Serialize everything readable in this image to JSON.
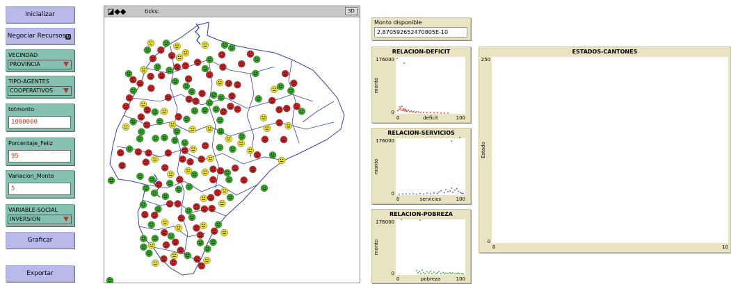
{
  "buttons": {
    "inicializar": "Inicializar",
    "negociar": "Negociar Recursos",
    "graficar": "Graficar",
    "exportar": "Exportar"
  },
  "choosers": {
    "vecindad": {
      "label": "VECINDAD",
      "value": "PROVINCIA"
    },
    "tipo_agentes": {
      "label": "TIPO-AGENTES",
      "value": "COOPERATIVOS"
    },
    "variable_social": {
      "label": "VARIABLE-SOCIAL",
      "value": "INVERSION"
    }
  },
  "inputs": {
    "totmonto": {
      "label": "totmonto",
      "value": "1000000"
    },
    "porcentaje_feliz": {
      "label": "Porcentaje_Feliz",
      "value": "95"
    },
    "variacion_monto": {
      "label": "Variacion_Monto",
      "value": "5"
    }
  },
  "view": {
    "ticks_label": "ticks:",
    "btn_3d": "3D",
    "agent_colors": {
      "happy": "#33aa22",
      "sad": "#cc2222",
      "neutral": "#e8e020"
    }
  },
  "monitor": {
    "label": "Monto disponible",
    "value": "2.870592652470805E-10"
  },
  "plots": {
    "deficit": {
      "title": "RELACION-DEFICIT",
      "ylabel": "monto",
      "xlabel": "deficit",
      "ymax": "176000",
      "ymin": "0",
      "xmin": "0",
      "xmax": "100",
      "color": "#d03030"
    },
    "servicios": {
      "title": "RELACION-SERVICIOS",
      "ylabel": "monto",
      "xlabel": "servicios",
      "ymax": "176000",
      "ymin": "0",
      "xmin": "0",
      "xmax": "100",
      "color": "#2060c0"
    },
    "pobreza": {
      "title": "RELACION-POBREZA",
      "ylabel": "monto",
      "xlabel": "pobreza",
      "ymax": "176000",
      "ymin": "0",
      "xmin": "0",
      "xmax": "100",
      "color": "#30a030"
    },
    "estados": {
      "title": "ESTADOS-CANTONES",
      "ylabel": "Estado",
      "ymax": "250",
      "ymin": "0",
      "xmin": "0",
      "xmax": "10"
    }
  },
  "chart_data": [
    {
      "type": "scatter",
      "title": "RELACION-DEFICIT",
      "xlabel": "deficit",
      "ylabel": "monto",
      "xlim": [
        0,
        100
      ],
      "ylim": [
        0,
        176000
      ],
      "points": [
        [
          2,
          170000
        ],
        [
          12,
          155000
        ],
        [
          3,
          8000
        ],
        [
          5,
          12000
        ],
        [
          6,
          20000
        ],
        [
          7,
          15000
        ],
        [
          8,
          10000
        ],
        [
          9,
          22000
        ],
        [
          10,
          9000
        ],
        [
          11,
          14000
        ],
        [
          12,
          11000
        ],
        [
          13,
          7000
        ],
        [
          14,
          12000
        ],
        [
          15,
          8000
        ],
        [
          16,
          6000
        ],
        [
          18,
          9000
        ],
        [
          20,
          5000
        ],
        [
          22,
          7000
        ],
        [
          24,
          4000
        ],
        [
          26,
          6000
        ],
        [
          28,
          3000
        ],
        [
          30,
          5000
        ],
        [
          33,
          4000
        ],
        [
          36,
          3000
        ],
        [
          40,
          2500
        ],
        [
          45,
          2000
        ],
        [
          50,
          2200
        ],
        [
          55,
          1500
        ],
        [
          60,
          1800
        ],
        [
          65,
          1200
        ],
        [
          70,
          1000
        ],
        [
          75,
          900
        ]
      ]
    },
    {
      "type": "scatter",
      "title": "RELACION-SERVICIOS",
      "xlabel": "servicios",
      "ylabel": "monto",
      "xlim": [
        0,
        100
      ],
      "ylim": [
        0,
        176000
      ],
      "points": [
        [
          92,
          176000
        ],
        [
          80,
          165000
        ],
        [
          5,
          1000
        ],
        [
          10,
          1500
        ],
        [
          15,
          2000
        ],
        [
          20,
          1800
        ],
        [
          25,
          2500
        ],
        [
          30,
          1200
        ],
        [
          35,
          3000
        ],
        [
          40,
          2000
        ],
        [
          45,
          4000
        ],
        [
          50,
          2500
        ],
        [
          55,
          5000
        ],
        [
          60,
          3500
        ],
        [
          62,
          8000
        ],
        [
          65,
          12000
        ],
        [
          70,
          6000
        ],
        [
          72,
          15000
        ],
        [
          75,
          9000
        ],
        [
          78,
          11000
        ],
        [
          80,
          20000
        ],
        [
          82,
          7000
        ],
        [
          85,
          14000
        ],
        [
          88,
          18000
        ],
        [
          90,
          10000
        ],
        [
          93,
          6000
        ],
        [
          95,
          4000
        ],
        [
          97,
          3000
        ]
      ]
    },
    {
      "type": "scatter",
      "title": "RELACION-POBREZA",
      "xlabel": "pobreza",
      "ylabel": "monto",
      "xlim": [
        0,
        100
      ],
      "ylim": [
        0,
        176000
      ],
      "points": [
        [
          8,
          174000
        ],
        [
          35,
          172000
        ],
        [
          30,
          12000
        ],
        [
          32,
          5000
        ],
        [
          34,
          9000
        ],
        [
          36,
          3000
        ],
        [
          38,
          14000
        ],
        [
          40,
          6000
        ],
        [
          42,
          2000
        ],
        [
          45,
          8000
        ],
        [
          48,
          4000
        ],
        [
          50,
          10000
        ],
        [
          52,
          3000
        ],
        [
          55,
          7000
        ],
        [
          58,
          2500
        ],
        [
          60,
          5000
        ],
        [
          62,
          9000
        ],
        [
          65,
          3000
        ],
        [
          68,
          6000
        ],
        [
          70,
          2000
        ],
        [
          72,
          4000
        ],
        [
          75,
          3500
        ],
        [
          78,
          5000
        ],
        [
          80,
          2000
        ],
        [
          82,
          4500
        ],
        [
          85,
          3000
        ],
        [
          88,
          2500
        ],
        [
          90,
          4000
        ],
        [
          92,
          2000
        ],
        [
          95,
          3000
        ],
        [
          97,
          1500
        ]
      ]
    },
    {
      "type": "line",
      "title": "ESTADOS-CANTONES",
      "ylabel": "Estado",
      "xlim": [
        0,
        10
      ],
      "ylim": [
        0,
        250
      ],
      "series": []
    }
  ]
}
